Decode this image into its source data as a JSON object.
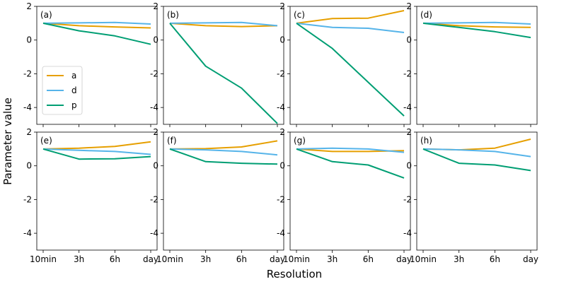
{
  "chart_data": {
    "type": "line",
    "xlabel": "Resolution",
    "ylabel": "Parameter value",
    "categories": [
      "10min",
      "3h",
      "6h",
      "day"
    ],
    "yticks": [
      2,
      0,
      -2,
      -4
    ],
    "ylim": [
      -5.0,
      2.0
    ],
    "legend": {
      "location": "left-middle of panel (a)",
      "entries": [
        {
          "name": "a",
          "color": "#E69F00"
        },
        {
          "name": "d",
          "color": "#56B4E9"
        },
        {
          "name": "p",
          "color": "#009E73"
        }
      ]
    },
    "panels": [
      {
        "label": "(a)",
        "series": [
          {
            "name": "a",
            "values": [
              1.0,
              0.85,
              0.78,
              0.72
            ]
          },
          {
            "name": "d",
            "values": [
              1.0,
              1.02,
              1.05,
              0.95
            ]
          },
          {
            "name": "p",
            "values": [
              1.0,
              0.55,
              0.25,
              -0.25
            ]
          }
        ]
      },
      {
        "label": "(b)",
        "series": [
          {
            "name": "a",
            "values": [
              1.0,
              0.85,
              0.8,
              0.85
            ]
          },
          {
            "name": "d",
            "values": [
              1.0,
              1.02,
              1.05,
              0.85
            ]
          },
          {
            "name": "p",
            "values": [
              1.0,
              -1.55,
              -2.85,
              -4.95
            ]
          }
        ]
      },
      {
        "label": "(c)",
        "series": [
          {
            "name": "a",
            "values": [
              1.0,
              1.28,
              1.3,
              1.75
            ]
          },
          {
            "name": "d",
            "values": [
              1.0,
              0.75,
              0.7,
              0.45
            ]
          },
          {
            "name": "p",
            "values": [
              1.0,
              -0.5,
              -2.5,
              -4.5
            ]
          }
        ]
      },
      {
        "label": "(d)",
        "series": [
          {
            "name": "a",
            "values": [
              1.0,
              0.85,
              0.78,
              0.75
            ]
          },
          {
            "name": "d",
            "values": [
              1.0,
              1.02,
              1.05,
              0.95
            ]
          },
          {
            "name": "p",
            "values": [
              1.0,
              0.75,
              0.5,
              0.15
            ]
          }
        ]
      },
      {
        "label": "(e)",
        "series": [
          {
            "name": "a",
            "values": [
              1.0,
              1.05,
              1.15,
              1.42
            ]
          },
          {
            "name": "d",
            "values": [
              1.0,
              0.92,
              0.85,
              0.68
            ]
          },
          {
            "name": "p",
            "values": [
              1.0,
              0.4,
              0.42,
              0.55
            ]
          }
        ]
      },
      {
        "label": "(f)",
        "series": [
          {
            "name": "a",
            "values": [
              1.0,
              1.02,
              1.12,
              1.48
            ]
          },
          {
            "name": "d",
            "values": [
              1.0,
              0.95,
              0.85,
              0.65
            ]
          },
          {
            "name": "p",
            "values": [
              1.0,
              0.25,
              0.15,
              0.1
            ]
          }
        ]
      },
      {
        "label": "(g)",
        "series": [
          {
            "name": "a",
            "values": [
              1.0,
              0.85,
              0.85,
              0.9
            ]
          },
          {
            "name": "d",
            "values": [
              1.0,
              1.05,
              1.0,
              0.8
            ]
          },
          {
            "name": "p",
            "values": [
              1.0,
              0.25,
              0.05,
              -0.72
            ]
          }
        ]
      },
      {
        "label": "(h)",
        "series": [
          {
            "name": "a",
            "values": [
              1.0,
              0.95,
              1.05,
              1.58
            ]
          },
          {
            "name": "d",
            "values": [
              1.0,
              0.95,
              0.85,
              0.55
            ]
          },
          {
            "name": "p",
            "values": [
              1.0,
              0.15,
              0.05,
              -0.28
            ]
          }
        ]
      }
    ]
  }
}
